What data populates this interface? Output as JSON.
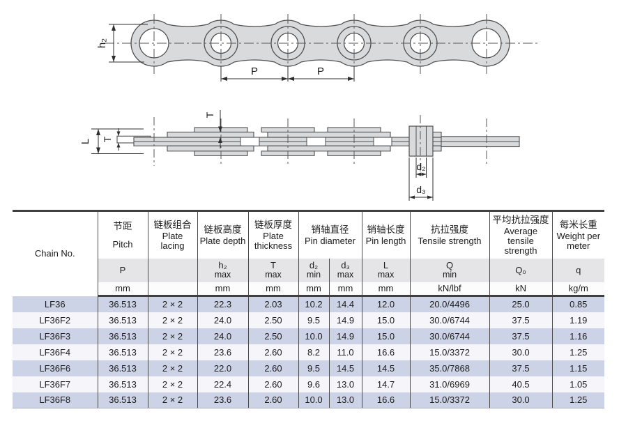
{
  "drawing": {
    "labels": {
      "h2": "h₂",
      "p_left": "P",
      "p_right": "P",
      "T_top": "T",
      "L": "L",
      "T_left": "T",
      "d2": "d₂",
      "d3": "d₃"
    }
  },
  "table": {
    "columns": [
      {
        "cn": "",
        "en": "Chain No.",
        "sym": "",
        "sym2": "",
        "unit": ""
      },
      {
        "cn": "节距",
        "en": "Pitch",
        "sym": "P",
        "sym2": "",
        "unit": "mm"
      },
      {
        "cn": "链板组合",
        "en": "Plate lacing",
        "sym": "",
        "sym2": "",
        "unit": ""
      },
      {
        "cn": "链板高度",
        "en": "Plate depth",
        "sym": "h₂",
        "sym2": "max",
        "unit": "mm"
      },
      {
        "cn": "链板厚度",
        "en": "Plate thickness",
        "sym": "T",
        "sym2": "max",
        "unit": "mm"
      },
      {
        "cn": "销轴直径",
        "en": "Pin diameter",
        "sub": [
          {
            "sym": "d₂",
            "sym2": "min",
            "unit": "mm"
          },
          {
            "sym": "d₃",
            "sym2": "max",
            "unit": "mm"
          }
        ]
      },
      {
        "cn": "销轴长度",
        "en": "Pin length",
        "sym": "L",
        "sym2": "max",
        "unit": "mm"
      },
      {
        "cn": "抗拉强度",
        "en": "Tensile strength",
        "sym": "Q",
        "sym2": "min",
        "unit": "kN/lbf"
      },
      {
        "cn": "平均抗拉强度",
        "en": "Average tensile strength",
        "sym": "Q₀",
        "sym2": "",
        "unit": "kN"
      },
      {
        "cn": "每米长重",
        "en": "Weight per meter",
        "sym": "q",
        "sym2": "",
        "unit": "kg/m"
      }
    ],
    "rows": [
      [
        "LF36",
        "36.513",
        "2 × 2",
        "22.3",
        "2.03",
        "10.2",
        "14.4",
        "12.0",
        "20.0/4496",
        "25.0",
        "0.85"
      ],
      [
        "LF36F2",
        "36.513",
        "2 × 2",
        "24.0",
        "2.50",
        "9.5",
        "14.9",
        "15.0",
        "30.0/6744",
        "37.5",
        "1.19"
      ],
      [
        "LF36F3",
        "36.513",
        "2 × 2",
        "24.0",
        "2.50",
        "10.0",
        "14.9",
        "15.0",
        "30.0/6744",
        "37.5",
        "1.16"
      ],
      [
        "LF36F4",
        "36.513",
        "2 × 2",
        "23.6",
        "2.60",
        "8.2",
        "11.0",
        "16.6",
        "15.0/3372",
        "30.0",
        "1.25"
      ],
      [
        "LF36F6",
        "36.513",
        "2 × 2",
        "22.0",
        "2.60",
        "9.5",
        "14.5",
        "14.5",
        "35.0/7868",
        "37.5",
        "1.15"
      ],
      [
        "LF36F7",
        "36.513",
        "2 × 2",
        "22.4",
        "2.60",
        "9.6",
        "13.0",
        "14.7",
        "31.0/6969",
        "40.5",
        "1.05"
      ],
      [
        "LF36F8",
        "36.513",
        "2 × 2",
        "23.6",
        "2.60",
        "10.0",
        "13.0",
        "16.6",
        "15.0/3372",
        "30.0",
        "1.25"
      ]
    ]
  }
}
